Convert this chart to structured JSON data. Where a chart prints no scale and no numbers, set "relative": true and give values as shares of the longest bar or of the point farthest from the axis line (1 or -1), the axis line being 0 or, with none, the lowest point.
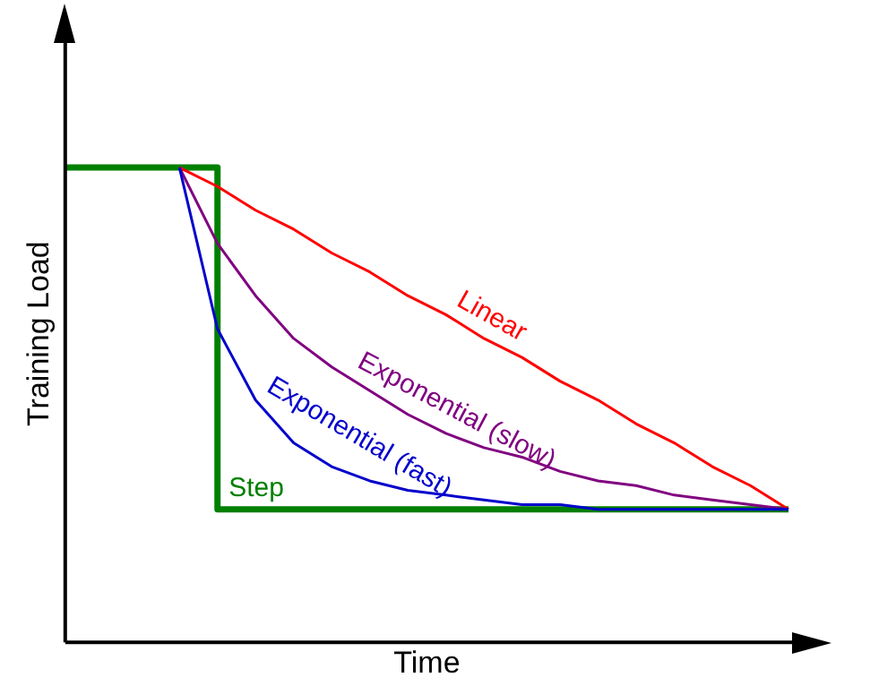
{
  "chart_data": {
    "type": "line",
    "relative": true,
    "xlabel": "Time",
    "ylabel": "Training Load",
    "legend": false,
    "grid": false,
    "marker": "none",
    "line_style": "solid",
    "categories": [
      null,
      null,
      null,
      null,
      null,
      null,
      null,
      null,
      null,
      null,
      null,
      null,
      null,
      null,
      null,
      null,
      null,
      null,
      null,
      null
    ],
    "series": [
      {
        "name": "Step",
        "type": "step",
        "color": "#008000",
        "values": [
          1,
          1,
          1,
          1,
          0.28,
          0.28,
          0.28,
          0.28,
          0.28,
          0.28,
          0.28,
          0.28,
          0.28,
          0.28,
          0.28,
          0.28,
          0.28,
          0.28,
          0.28,
          0.28
        ]
      },
      {
        "name": "Linear",
        "color": "#ff0000",
        "values": [
          null,
          null,
          null,
          1,
          0.96,
          0.91,
          0.87,
          0.82,
          0.78,
          0.73,
          0.69,
          0.64,
          0.6,
          0.55,
          0.51,
          0.46,
          0.42,
          0.37,
          0.33,
          0.28
        ]
      },
      {
        "name": "Exponential (slow)",
        "color": "#800080",
        "values": [
          null,
          null,
          null,
          1,
          0.84,
          0.73,
          0.64,
          0.58,
          0.53,
          0.48,
          0.44,
          0.41,
          0.39,
          0.36,
          0.34,
          0.33,
          0.31,
          0.3,
          0.29,
          0.28
        ]
      },
      {
        "name": "Exponential (fast)",
        "color": "#0000cc",
        "values": [
          null,
          null,
          null,
          1,
          0.66,
          0.51,
          0.42,
          0.37,
          0.34,
          0.32,
          0.31,
          0.3,
          0.29,
          0.29,
          0.28,
          0.28,
          0.28,
          0.28,
          0.28,
          0.28
        ]
      }
    ]
  }
}
